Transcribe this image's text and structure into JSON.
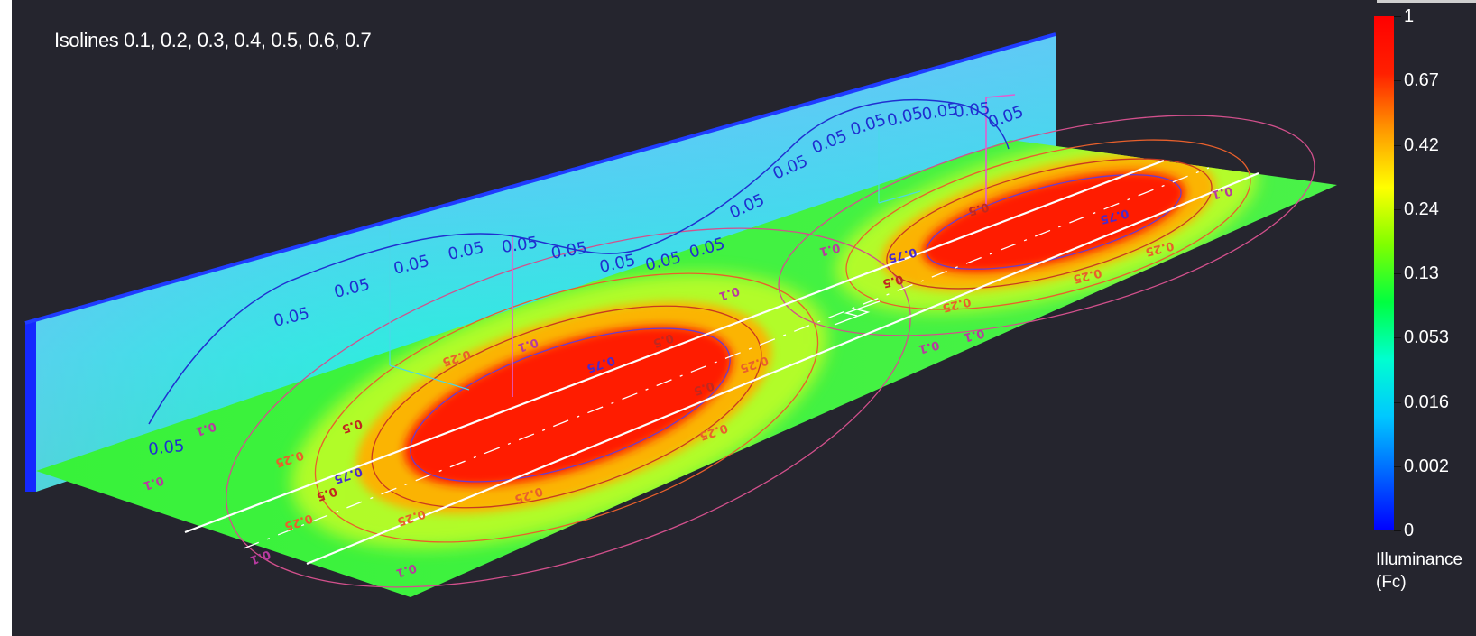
{
  "caption": "Isolines 0.1, 0.2, 0.3, 0.4, 0.5, 0.6, 0.7",
  "colorbar": {
    "title_line1": "Illuminance",
    "title_line2": "(Fc)",
    "ticks": [
      "1",
      "0.67",
      "0.42",
      "0.24",
      "0.13",
      "0.053",
      "0.016",
      "0.002",
      "0"
    ],
    "stops": [
      "#0000ff",
      "#0066ff",
      "#00c8ff",
      "#00ffd0",
      "#00ff40",
      "#80ff00",
      "#ffff00",
      "#ff9900",
      "#ff2000",
      "#ff0000"
    ]
  },
  "wall_labels": [
    "0.05",
    "0.05",
    "0.05",
    "0.05",
    "0.05",
    "0.05",
    "0.05",
    "0.05",
    "0.05",
    "0.05",
    "0.05",
    "0.05",
    "0.05",
    "0.05",
    "0.05",
    "0.05",
    "0.05",
    "0.05"
  ],
  "floor_labels_inner": [
    "0.75",
    "0.75",
    "0.75",
    "0.75"
  ],
  "floor_labels_mid": [
    "0.5",
    "0.5",
    "0.5",
    "0.5",
    "0.5",
    "0.5"
  ],
  "floor_labels_outer": [
    "0.25",
    "0.25",
    "0.25",
    "0.25",
    "0.25",
    "0.25",
    "0.25",
    "0.25",
    "0.25",
    "0.25"
  ],
  "floor_labels_edge": [
    "0.1",
    "0.1",
    "0.1",
    "0.1",
    "0.1",
    "0.1",
    "0.1",
    "0.1",
    "0.1",
    "0.1"
  ],
  "chart_data": {
    "type": "heatmap",
    "title": "Isolines 0.1, 0.2, 0.3, 0.4, 0.5, 0.6, 0.7",
    "colorbar_label": "Illuminance (Fc)",
    "colorbar_ticks": [
      1,
      0.67,
      0.42,
      0.24,
      0.13,
      0.053,
      0.016,
      0.002,
      0
    ],
    "value_range": [
      0,
      1
    ],
    "floor_contour_levels": [
      0.1,
      0.25,
      0.5,
      0.75
    ],
    "wall_contour_levels": [
      0.05
    ],
    "peaks": [
      {
        "surface": "floor",
        "value": 1
      },
      {
        "surface": "floor",
        "value": 1
      }
    ]
  }
}
